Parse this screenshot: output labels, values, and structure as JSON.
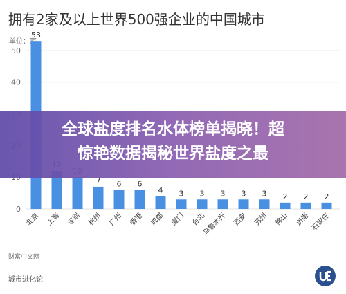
{
  "title": "拥有2家及以上世界500强企业的中国城市",
  "unit": "单位：家",
  "source": "财富中文网",
  "footer_brand": "城市进化论",
  "headline": {
    "line1": "全球盐度排名水体榜单揭晓！超",
    "line2": "惊艳数据揭秘世界盐度之最"
  },
  "colors": {
    "bar": "#4a90e2",
    "grid": "#e3e3e3",
    "text": "#333333"
  },
  "logo_icon": "ue-badge-icon",
  "chart_data": {
    "type": "bar",
    "title": "拥有2家及以上世界500强企业的中国城市",
    "ylabel": "单位：家",
    "xlabel": "",
    "ylim": [
      0,
      55
    ],
    "yticks": [
      0,
      10,
      20,
      30,
      40,
      50
    ],
    "grid": true,
    "categories": [
      "北京",
      "上海",
      "深圳",
      "杭州",
      "广州",
      "香港",
      "成都",
      "厦门",
      "台北",
      "乌鲁木齐",
      "西安",
      "苏州",
      "佛山",
      "济南",
      "石家庄"
    ],
    "values": [
      53,
      12,
      10,
      7,
      6,
      6,
      4,
      3,
      3,
      3,
      3,
      3,
      2,
      2,
      2
    ]
  }
}
